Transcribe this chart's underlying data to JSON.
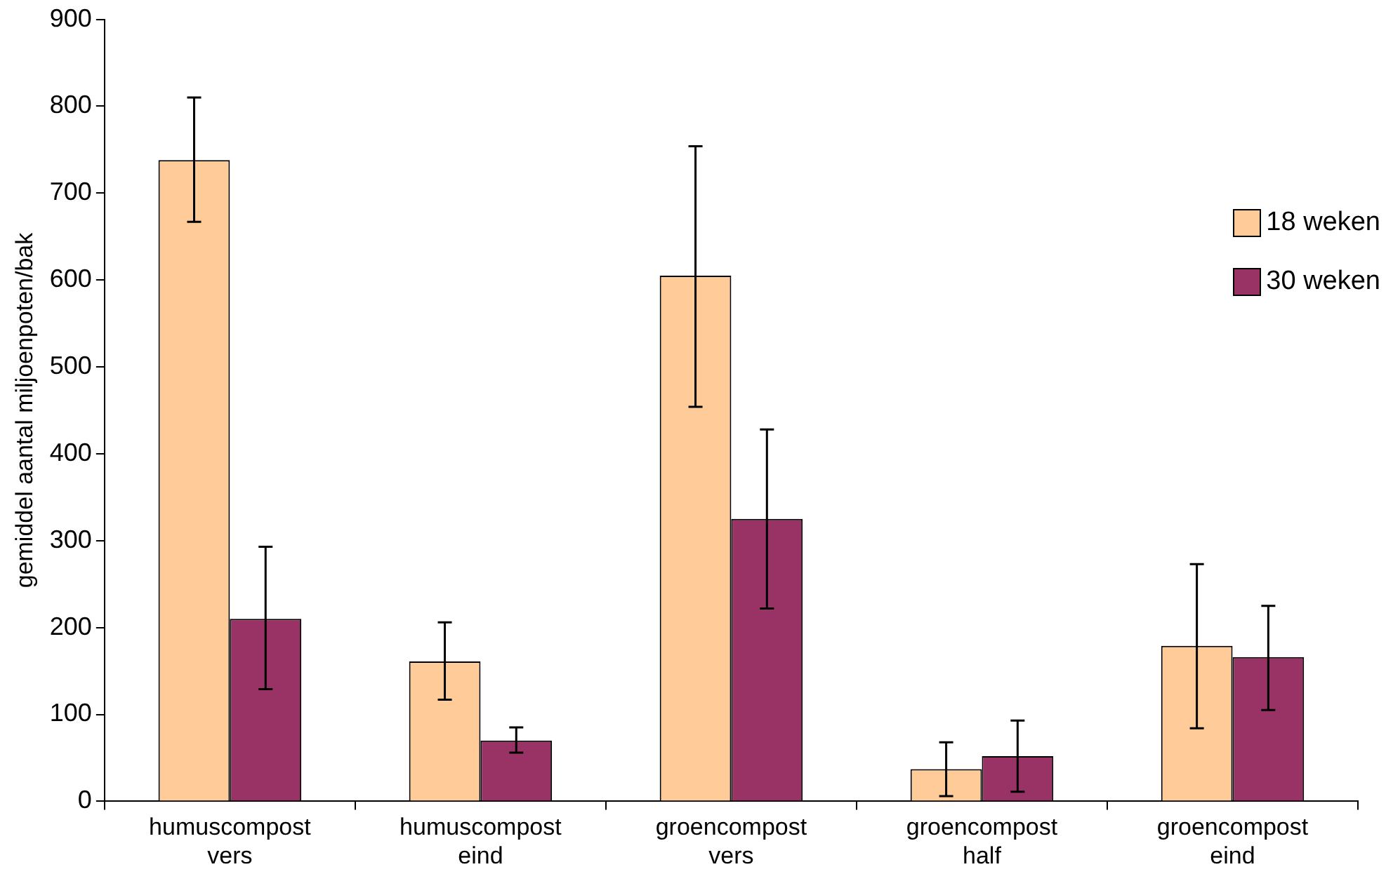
{
  "chart_data": {
    "type": "bar",
    "ylabel": "gemiddel aantal miljoenpoten/bak",
    "categories": [
      "humuscompost vers",
      "humuscompost eind",
      "groencompost vers",
      "groencompost half",
      "groencompost eind"
    ],
    "series": [
      {
        "name": "18 weken",
        "color": "#ffcc99",
        "values": [
          738,
          161,
          605,
          37,
          179
        ],
        "errors": [
          [
            667,
            810
          ],
          [
            117,
            206
          ],
          [
            454,
            754
          ],
          [
            6,
            68
          ],
          [
            84,
            273
          ]
        ]
      },
      {
        "name": "30 weken",
        "color": "#993366",
        "values": [
          210,
          70,
          325,
          52,
          166
        ],
        "errors": [
          [
            129,
            293
          ],
          [
            56,
            85
          ],
          [
            222,
            428
          ],
          [
            11,
            93
          ],
          [
            105,
            225
          ]
        ]
      }
    ],
    "ylim": [
      0,
      900
    ],
    "yticks": [
      0,
      100,
      200,
      300,
      400,
      500,
      600,
      700,
      800,
      900
    ],
    "grid": false,
    "legend": "top right"
  }
}
